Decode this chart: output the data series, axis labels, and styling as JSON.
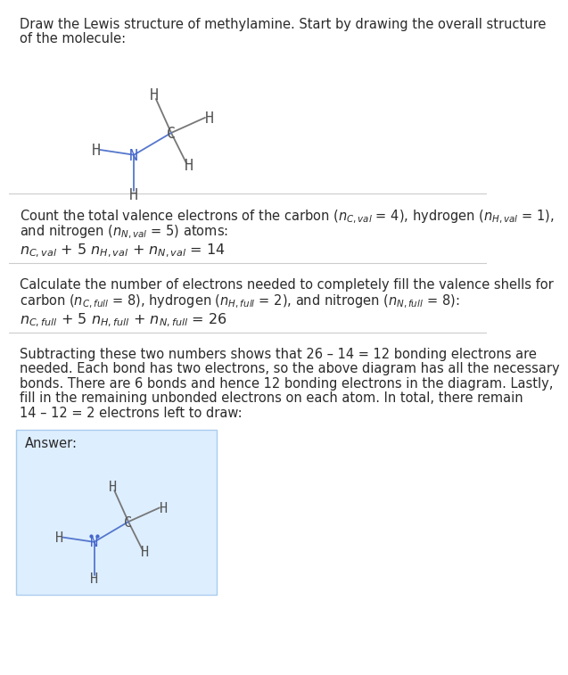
{
  "title_line1": "Draw the Lewis structure of methylamine. Start by drawing the overall structure",
  "title_line2": "of the molecule:",
  "section1_line1": "Count the total valence electrons of the carbon ($n_{C,val}$ = 4), hydrogen ($n_{H,val}$ = 1),",
  "section1_line2": "and nitrogen ($n_{N,val}$ = 5) atoms:",
  "section1_eq": "$n_{C,val}$ + 5 $n_{H,val}$ + $n_{N,val}$ = 14",
  "section2_line1": "Calculate the number of electrons needed to completely fill the valence shells for",
  "section2_line2": "carbon ($n_{C,full}$ = 8), hydrogen ($n_{H,full}$ = 2), and nitrogen ($n_{N,full}$ = 8):",
  "section2_eq": "$n_{C,full}$ + 5 $n_{H,full}$ + $n_{N,full}$ = 26",
  "section3_lines": [
    "Subtracting these two numbers shows that 26 – 14 = 12 bonding electrons are",
    "needed. Each bond has two electrons, so the above diagram has all the necessary",
    "bonds. There are 6 bonds and hence 12 bonding electrons in the diagram. Lastly,",
    "fill in the remaining unbonded electrons on each atom. In total, there remain",
    "14 – 12 = 2 electrons left to draw:"
  ],
  "answer_label": "Answer:",
  "bg_color": "#ffffff",
  "answer_box_color": "#ddeeff",
  "answer_box_border": "#aaccee",
  "text_color": "#2a2a2a",
  "atom_C_color": "#555555",
  "atom_N_color": "#4466cc",
  "atom_H_color": "#555555",
  "bond_color": "#777777",
  "bond_color_N": "#5577cc",
  "font_size_main": 10.5,
  "font_size_eq": 11.5,
  "sep_color": "#cccccc"
}
